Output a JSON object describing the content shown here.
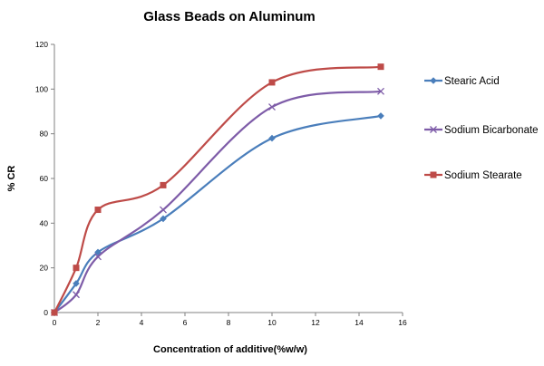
{
  "chart_data": {
    "type": "line",
    "title": "Glass Beads on Aluminum",
    "xlabel": "Concentration of additive(%w/w)",
    "ylabel": "% CR",
    "xlim": [
      0,
      16
    ],
    "ylim": [
      0,
      120
    ],
    "x_ticks": [
      0,
      2,
      4,
      6,
      8,
      10,
      12,
      14,
      16
    ],
    "y_ticks": [
      0,
      20,
      40,
      60,
      80,
      100,
      120
    ],
    "grid": false,
    "legend_position": "right",
    "x": [
      0,
      1,
      2,
      5,
      10,
      15
    ],
    "series": [
      {
        "name": "Stearic Acid",
        "values": [
          0,
          13,
          27,
          42,
          78,
          88
        ],
        "color": "#4a7ebb",
        "marker": "diamond"
      },
      {
        "name": "Sodium Bicarbonate",
        "values": [
          0,
          8,
          25,
          46,
          92,
          99
        ],
        "color": "#7e5ca8",
        "marker": "x"
      },
      {
        "name": "Sodium Stearate",
        "values": [
          0,
          20,
          46,
          57,
          103,
          110
        ],
        "color": "#be4b48",
        "marker": "square"
      }
    ]
  }
}
